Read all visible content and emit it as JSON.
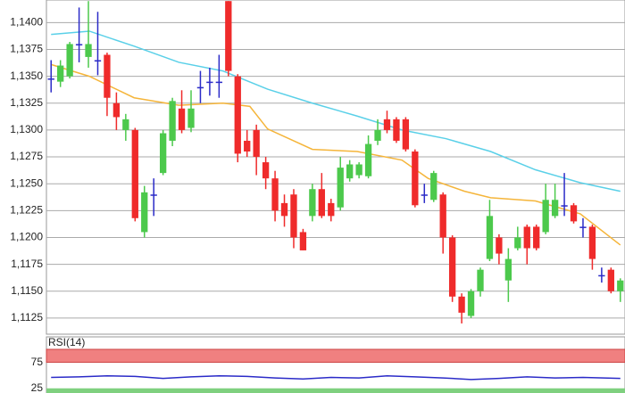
{
  "chart_data": [
    {
      "type": "candlestick",
      "up_color": "#4cc94c",
      "down_color": "#ef2b2b",
      "doji_color": "#2b2bc8",
      "open": [
        1.1348,
        1.1345,
        1.135,
        1.138,
        1.1368,
        1.1365,
        1.137,
        1.1325,
        1.13,
        1.13,
        1.1205,
        1.124,
        1.126,
        1.129,
        1.132,
        1.1302,
        1.134,
        1.1345,
        1.1345,
        1.142,
        1.135,
        1.129,
        1.13,
        1.127,
        1.1255,
        1.1232,
        1.124,
        1.1205,
        1.122,
        1.1245,
        1.1232,
        1.1228,
        1.1255,
        1.1258,
        1.1257,
        1.129,
        1.131,
        1.131,
        1.131,
        1.128,
        1.124,
        1.1235,
        1.124,
        1.12,
        1.1145,
        1.1127,
        1.115,
        1.118,
        1.12,
        1.116,
        1.119,
        1.121,
        1.121,
        1.1205,
        1.122,
        1.123,
        1.123,
        1.121,
        1.121,
        1.1165,
        1.117,
        1.115
      ],
      "high": [
        1.1365,
        1.1365,
        1.1382,
        1.1414,
        1.142,
        1.141,
        1.1372,
        1.1335,
        1.1315,
        1.1302,
        1.1248,
        1.1255,
        1.13,
        1.133,
        1.1337,
        1.1337,
        1.1355,
        1.1358,
        1.137,
        1.142,
        1.1352,
        1.13,
        1.1305,
        1.1275,
        1.1262,
        1.124,
        1.1245,
        1.1208,
        1.125,
        1.126,
        1.1236,
        1.1275,
        1.1272,
        1.127,
        1.1295,
        1.131,
        1.1318,
        1.1312,
        1.1312,
        1.1282,
        1.125,
        1.1262,
        1.1242,
        1.1202,
        1.1148,
        1.1152,
        1.1172,
        1.1235,
        1.1203,
        1.119,
        1.121,
        1.1212,
        1.1212,
        1.125,
        1.125,
        1.126,
        1.1232,
        1.1218,
        1.1212,
        1.1172,
        1.1172,
        1.1162
      ],
      "low": [
        1.1335,
        1.134,
        1.1348,
        1.1363,
        1.1358,
        1.1351,
        1.1313,
        1.13,
        1.129,
        1.1215,
        1.12,
        1.122,
        1.1258,
        1.1285,
        1.1297,
        1.1298,
        1.1325,
        1.1332,
        1.133,
        1.135,
        1.127,
        1.1275,
        1.1258,
        1.1245,
        1.1215,
        1.121,
        1.119,
        1.1188,
        1.1215,
        1.1218,
        1.1215,
        1.1225,
        1.1252,
        1.1255,
        1.1255,
        1.1286,
        1.1297,
        1.1288,
        1.128,
        1.1228,
        1.1232,
        1.1233,
        1.1185,
        1.114,
        1.112,
        1.1125,
        1.1145,
        1.1178,
        1.1175,
        1.114,
        1.1188,
        1.1175,
        1.1188,
        1.1203,
        1.1218,
        1.122,
        1.1213,
        1.12,
        1.117,
        1.1158,
        1.1148,
        1.114
      ],
      "close": [
        1.1348,
        1.136,
        1.138,
        1.138,
        1.138,
        1.1365,
        1.133,
        1.1312,
        1.131,
        1.1218,
        1.1242,
        1.124,
        1.1297,
        1.1327,
        1.13,
        1.132,
        1.134,
        1.1345,
        1.1345,
        1.1355,
        1.1278,
        1.128,
        1.1275,
        1.1255,
        1.1225,
        1.122,
        1.12,
        1.1188,
        1.1245,
        1.122,
        1.122,
        1.1265,
        1.1268,
        1.1268,
        1.1287,
        1.13,
        1.13,
        1.129,
        1.1282,
        1.123,
        1.124,
        1.126,
        1.12,
        1.1145,
        1.113,
        1.115,
        1.117,
        1.122,
        1.1185,
        1.118,
        1.12,
        1.119,
        1.119,
        1.1235,
        1.1235,
        1.123,
        1.1215,
        1.121,
        1.118,
        1.1165,
        1.115,
        1.116
      ],
      "series": [
        {
          "color": "#5ad0e8",
          "x": [
            0,
            4.1,
            8.9,
            13.7,
            18.4,
            23.2,
            28.0,
            32.8,
            37.6,
            42.3,
            47.1,
            51.9,
            56.7,
            61.0
          ],
          "values": [
            1.1389,
            1.1392,
            1.1378,
            1.1363,
            1.1355,
            1.1338,
            1.1325,
            1.1313,
            1.13,
            1.1292,
            1.128,
            1.1263,
            1.1251,
            1.1243
          ]
        },
        {
          "color": "#f5b53a",
          "x": [
            0,
            4.1,
            8.9,
            13.7,
            18.4,
            21.3,
            23.2,
            28.0,
            32.8,
            37.6,
            40.4,
            44.3,
            47.1,
            51.9,
            56.7,
            61.0
          ],
          "values": [
            1.1361,
            1.135,
            1.133,
            1.1323,
            1.1325,
            1.1322,
            1.1301,
            1.1282,
            1.128,
            1.1272,
            1.1255,
            1.1243,
            1.1237,
            1.1234,
            1.1222,
            1.1193
          ]
        }
      ],
      "xlim": [
        -0.5,
        61.5
      ],
      "ylim": [
        1.111,
        1.1421
      ],
      "yticks": [
        {
          "value": 1.1125,
          "label": "1,1125"
        },
        {
          "value": 1.115,
          "label": "1,1150"
        },
        {
          "value": 1.1175,
          "label": "1,1175"
        },
        {
          "value": 1.12,
          "label": "1,1200"
        },
        {
          "value": 1.1225,
          "label": "1,1225"
        },
        {
          "value": 1.125,
          "label": "1,1250"
        },
        {
          "value": 1.1275,
          "label": "1,1275"
        },
        {
          "value": 1.13,
          "label": "1,1300"
        },
        {
          "value": 1.1325,
          "label": "1,1325"
        },
        {
          "value": 1.135,
          "label": "1,1350"
        },
        {
          "value": 1.1375,
          "label": "1,1375"
        },
        {
          "value": 1.14,
          "label": "1,1400"
        }
      ],
      "grid": true
    },
    {
      "type": "line",
      "title": "RSI(14)",
      "series": [
        {
          "color": "#2b2bc8",
          "x": [
            0,
            3,
            6,
            9,
            12,
            15,
            18,
            21,
            24,
            27,
            30,
            33,
            36,
            39,
            42,
            45,
            48,
            51,
            54,
            57,
            61
          ],
          "values": [
            46,
            47,
            49,
            48,
            44,
            47,
            49,
            48,
            45,
            43,
            46,
            45,
            49,
            47,
            45,
            42,
            44,
            47,
            45,
            46,
            44
          ]
        }
      ],
      "xlim": [
        -0.5,
        61.5
      ],
      "ylim": [
        16,
        100
      ],
      "yticks": [
        25,
        75
      ],
      "bands": [
        {
          "color": "#f08080"
        },
        {
          "color": "#7fd07f"
        }
      ]
    }
  ]
}
